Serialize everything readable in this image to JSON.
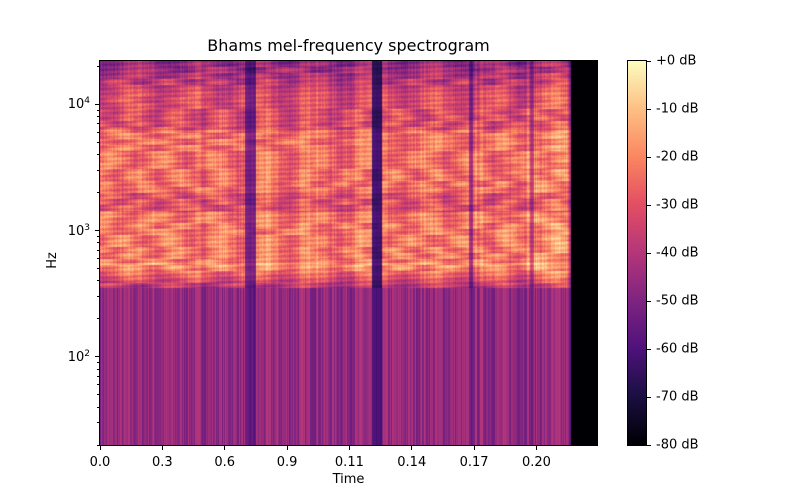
{
  "chart_data": {
    "type": "heatmap",
    "title": "Bhams mel-frequency spectrogram",
    "xlabel": "Time",
    "ylabel": "Hz",
    "x_tick_labels": [
      "0.0",
      "0.3",
      "0.6",
      "0.9",
      "0.11",
      "0.14",
      "0.17",
      "0.20"
    ],
    "y_scale": "log",
    "ylim": [
      20,
      22050
    ],
    "y_tick_labels": [
      {
        "value": 100,
        "base": "10",
        "exp": "2"
      },
      {
        "value": 1000,
        "base": "10",
        "exp": "3"
      },
      {
        "value": 10000,
        "base": "10",
        "exp": "4"
      }
    ],
    "colormap": "magma",
    "colorbar": {
      "range_db": [
        -80,
        0
      ],
      "tick_labels": [
        "+0 dB",
        "-10 dB",
        "-20 dB",
        "-30 dB",
        "-40 dB",
        "-50 dB",
        "-60 dB",
        "-70 dB",
        "-80 dB"
      ]
    },
    "grid": false
  }
}
